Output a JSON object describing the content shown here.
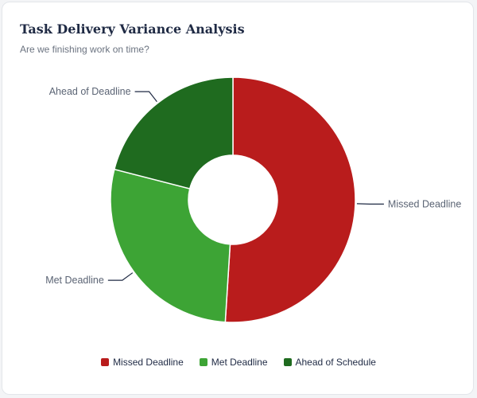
{
  "chart_data": {
    "type": "pie",
    "title": "Task Delivery Variance Analysis",
    "subtitle": "Are we finishing work on time?",
    "donut": true,
    "categories": [
      "Missed Deadline",
      "Met Deadline",
      "Ahead of Deadline"
    ],
    "values": [
      51,
      28,
      21
    ],
    "colors": [
      "#b91c1c",
      "#3da435",
      "#1f6b1f"
    ],
    "legend": {
      "position": "bottom",
      "entries": [
        "Missed Deadline",
        "Met Deadline",
        "Ahead of Schedule"
      ]
    }
  }
}
